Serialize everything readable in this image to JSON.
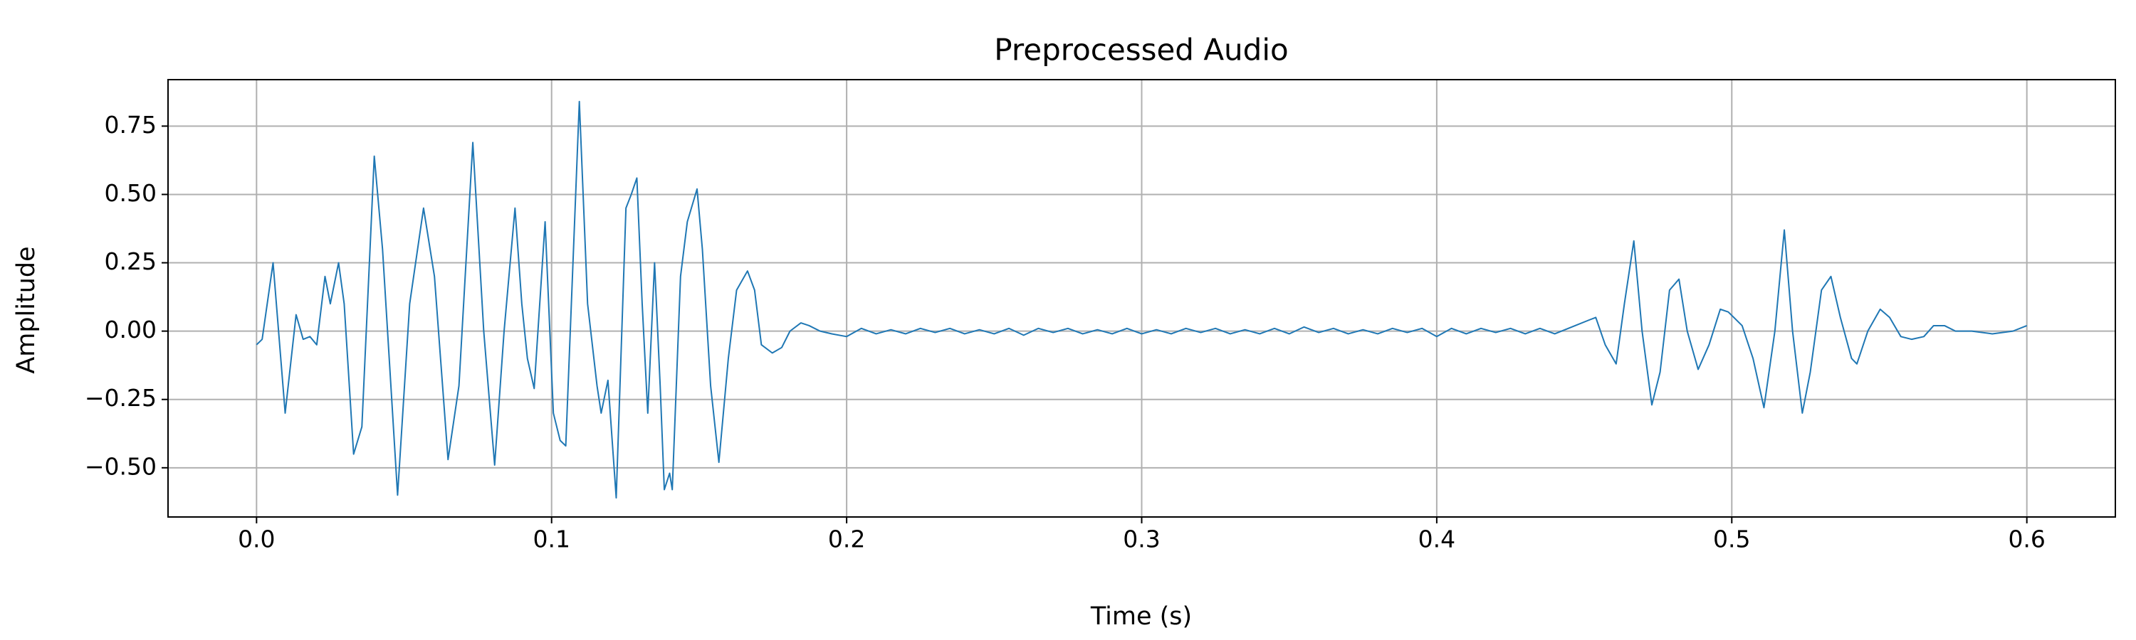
{
  "chart_data": {
    "type": "line",
    "title": "Preprocessed Audio",
    "x_label": "Time (s)",
    "y_label": "Amplitude",
    "color": "#1f77b4",
    "grid": true,
    "xlim": [
      -0.03,
      0.63
    ],
    "ylim": [
      -0.68,
      0.92
    ],
    "xticks": [
      {
        "value": 0,
        "label": "0.0"
      },
      0.1,
      0.2,
      0.3,
      0.4,
      0.5,
      0.6
    ],
    "yticks": [
      {
        "value": -0.5,
        "label": "−0.50"
      },
      {
        "value": -0.25,
        "label": "−0.25"
      },
      {
        "value": 0,
        "label": "0.00"
      },
      0.25,
      {
        "value": 0.5,
        "label": "0.50"
      },
      0.75
    ],
    "x": [
      0,
      0.0019,
      0.0056,
      0.0097,
      0.0134,
      0.0158,
      0.0181,
      0.0204,
      0.0232,
      0.025,
      0.0278,
      0.0297,
      0.0329,
      0.0357,
      0.0399,
      0.0427,
      0.0478,
      0.0519,
      0.0566,
      0.0603,
      0.0649,
      0.0686,
      0.0733,
      0.077,
      0.0807,
      0.0839,
      0.0876,
      0.0899,
      0.0918,
      0.0941,
      0.0978,
      0.1006,
      0.1029,
      0.1048,
      0.1094,
      0.1122,
      0.1154,
      0.1168,
      0.1191,
      0.1219,
      0.1252,
      0.127,
      0.1289,
      0.1307,
      0.1326,
      0.1349,
      0.1368,
      0.1382,
      0.14,
      0.1409,
      0.1437,
      0.146,
      0.1493,
      0.1511,
      0.1539,
      0.1567,
      0.1599,
      0.1627,
      0.1664,
      0.1688,
      0.1711,
      0.1748,
      0.178,
      0.1808,
      0.1845,
      0.1873,
      0.191,
      0.195,
      0.2,
      0.205,
      0.21,
      0.215,
      0.22,
      0.225,
      0.23,
      0.235,
      0.24,
      0.245,
      0.25,
      0.255,
      0.26,
      0.265,
      0.27,
      0.275,
      0.28,
      0.285,
      0.29,
      0.295,
      0.3,
      0.305,
      0.31,
      0.315,
      0.32,
      0.325,
      0.33,
      0.335,
      0.34,
      0.345,
      0.35,
      0.355,
      0.36,
      0.365,
      0.37,
      0.375,
      0.38,
      0.385,
      0.39,
      0.395,
      0.4,
      0.405,
      0.41,
      0.415,
      0.42,
      0.425,
      0.43,
      0.435,
      0.44,
      0.4469,
      0.4515,
      0.4539,
      0.4571,
      0.4608,
      0.4636,
      0.4668,
      0.4696,
      0.4729,
      0.4757,
      0.4789,
      0.4821,
      0.4849,
      0.4886,
      0.4923,
      0.4961,
      0.4988,
      0.5007,
      0.5035,
      0.5072,
      0.5109,
      0.5146,
      0.5178,
      0.5206,
      0.5239,
      0.5266,
      0.5304,
      0.5336,
      0.5368,
      0.5406,
      0.5424,
      0.5461,
      0.5503,
      0.5535,
      0.5573,
      0.561,
      0.5651,
      0.5684,
      0.5721,
      0.5758,
      0.5813,
      0.5883,
      0.5953,
      0.6
    ],
    "values": [
      -0.05,
      -0.03,
      0.25,
      -0.3,
      0.06,
      -0.03,
      -0.02,
      -0.05,
      0.2,
      0.1,
      0.25,
      0.1,
      -0.45,
      -0.35,
      0.64,
      0.3,
      -0.6,
      0.1,
      0.45,
      0.2,
      -0.47,
      -0.2,
      0.69,
      0,
      -0.49,
      0,
      0.45,
      0.1,
      -0.1,
      -0.21,
      0.4,
      -0.3,
      -0.4,
      -0.42,
      0.84,
      0.1,
      -0.2,
      -0.3,
      -0.18,
      -0.61,
      0.45,
      0.5,
      0.56,
      0.1,
      -0.3,
      0.25,
      -0.2,
      -0.58,
      -0.52,
      -0.58,
      0.2,
      0.4,
      0.52,
      0.3,
      -0.2,
      -0.48,
      -0.1,
      0.15,
      0.22,
      0.15,
      -0.05,
      -0.08,
      -0.06,
      0,
      0.03,
      0.02,
      0,
      -0.01,
      -0.02,
      0.01,
      -0.01,
      0.005,
      -0.01,
      0.01,
      -0.005,
      0.01,
      -0.01,
      0.005,
      -0.01,
      0.01,
      -0.015,
      0.01,
      -0.005,
      0.01,
      -0.01,
      0.005,
      -0.01,
      0.01,
      -0.01,
      0.005,
      -0.01,
      0.01,
      -0.005,
      0.01,
      -0.01,
      0.005,
      -0.01,
      0.01,
      -0.01,
      0.015,
      -0.005,
      0.01,
      -0.01,
      0.005,
      -0.01,
      0.01,
      -0.005,
      0.01,
      -0.02,
      0.01,
      -0.01,
      0.01,
      -0.005,
      0.01,
      -0.01,
      0.01,
      -0.01,
      0.02,
      0.04,
      0.05,
      -0.05,
      -0.12,
      0.1,
      0.33,
      0,
      -0.27,
      -0.15,
      0.15,
      0.19,
      0,
      -0.14,
      -0.05,
      0.08,
      0.07,
      0.05,
      0.02,
      -0.1,
      -0.28,
      0,
      0.37,
      0,
      -0.3,
      -0.15,
      0.15,
      0.2,
      0.05,
      -0.1,
      -0.12,
      0,
      0.08,
      0.05,
      -0.02,
      -0.03,
      -0.02,
      0.02,
      0.02,
      0,
      0,
      -0.01,
      0,
      0.02
    ]
  }
}
